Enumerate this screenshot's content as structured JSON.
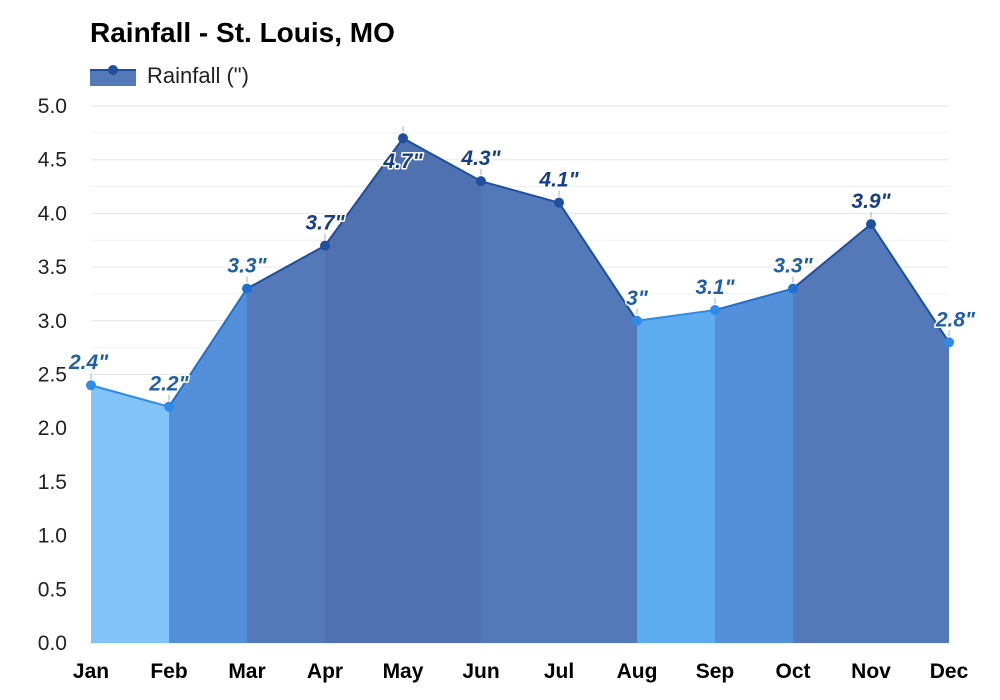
{
  "chart_data": {
    "type": "area",
    "title": "Rainfall - St. Louis, MO",
    "legend": {
      "label": "Rainfall (\")",
      "placement": "top-left"
    },
    "xlabel": "",
    "ylabel": "",
    "ylim": [
      0,
      5
    ],
    "yticks": [
      "0.0",
      "0.5",
      "1.0",
      "1.5",
      "2.0",
      "2.5",
      "3.0",
      "3.5",
      "4.0",
      "4.5",
      "5.0"
    ],
    "grid": true,
    "categories": [
      "Jan",
      "Feb",
      "Mar",
      "Apr",
      "May",
      "Jun",
      "Jul",
      "Aug",
      "Sep",
      "Oct",
      "Nov",
      "Dec"
    ],
    "series": [
      {
        "name": "Rainfall (\")",
        "values": [
          2.4,
          2.2,
          3.3,
          3.7,
          4.7,
          4.3,
          4.1,
          3.0,
          3.1,
          3.3,
          3.9,
          2.8
        ],
        "labels": [
          "2.4\"",
          "2.2\"",
          "3.3\"",
          "3.7\"",
          "4.7\"",
          "4.3\"",
          "4.1\"",
          "3\"",
          "3.1\"",
          "3.3\"",
          "3.9\"",
          "2.8\""
        ]
      }
    ],
    "colors": {
      "level_1": "#82c3f8",
      "level_2": "#5eacf0",
      "level_3": "#5490da",
      "level_4": "#5479b8",
      "level_5": "#4f71b0",
      "line_light": "#2e8be6",
      "line_mid": "#1f6fd0",
      "line_dark": "#1f4f9e",
      "label_light": "#1f5fa8",
      "label_dark": "#143f88",
      "legend_fill": "#5479b8",
      "legend_line": "#1f4f9e",
      "grid": "#e6e6e6"
    }
  }
}
